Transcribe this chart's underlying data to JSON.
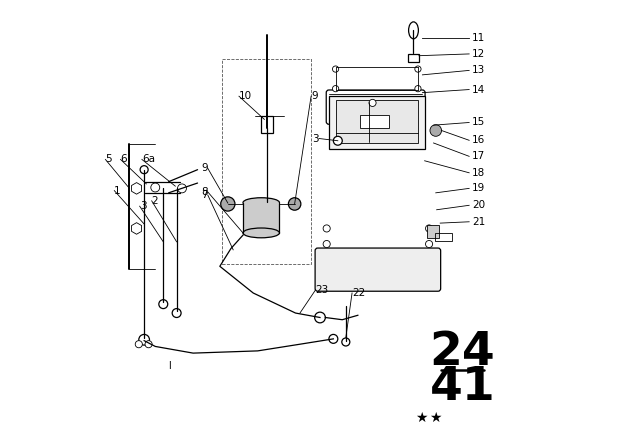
{
  "bg_color": "#ffffff",
  "fig_width": 6.4,
  "fig_height": 4.48,
  "dpi": 100,
  "line_color": "#000000",
  "text_color": "#000000",
  "label_fontsize": 7.5,
  "big_fontsize": 34,
  "lw_thin": 0.6,
  "lw_med": 0.9,
  "lw_thick": 1.4
}
